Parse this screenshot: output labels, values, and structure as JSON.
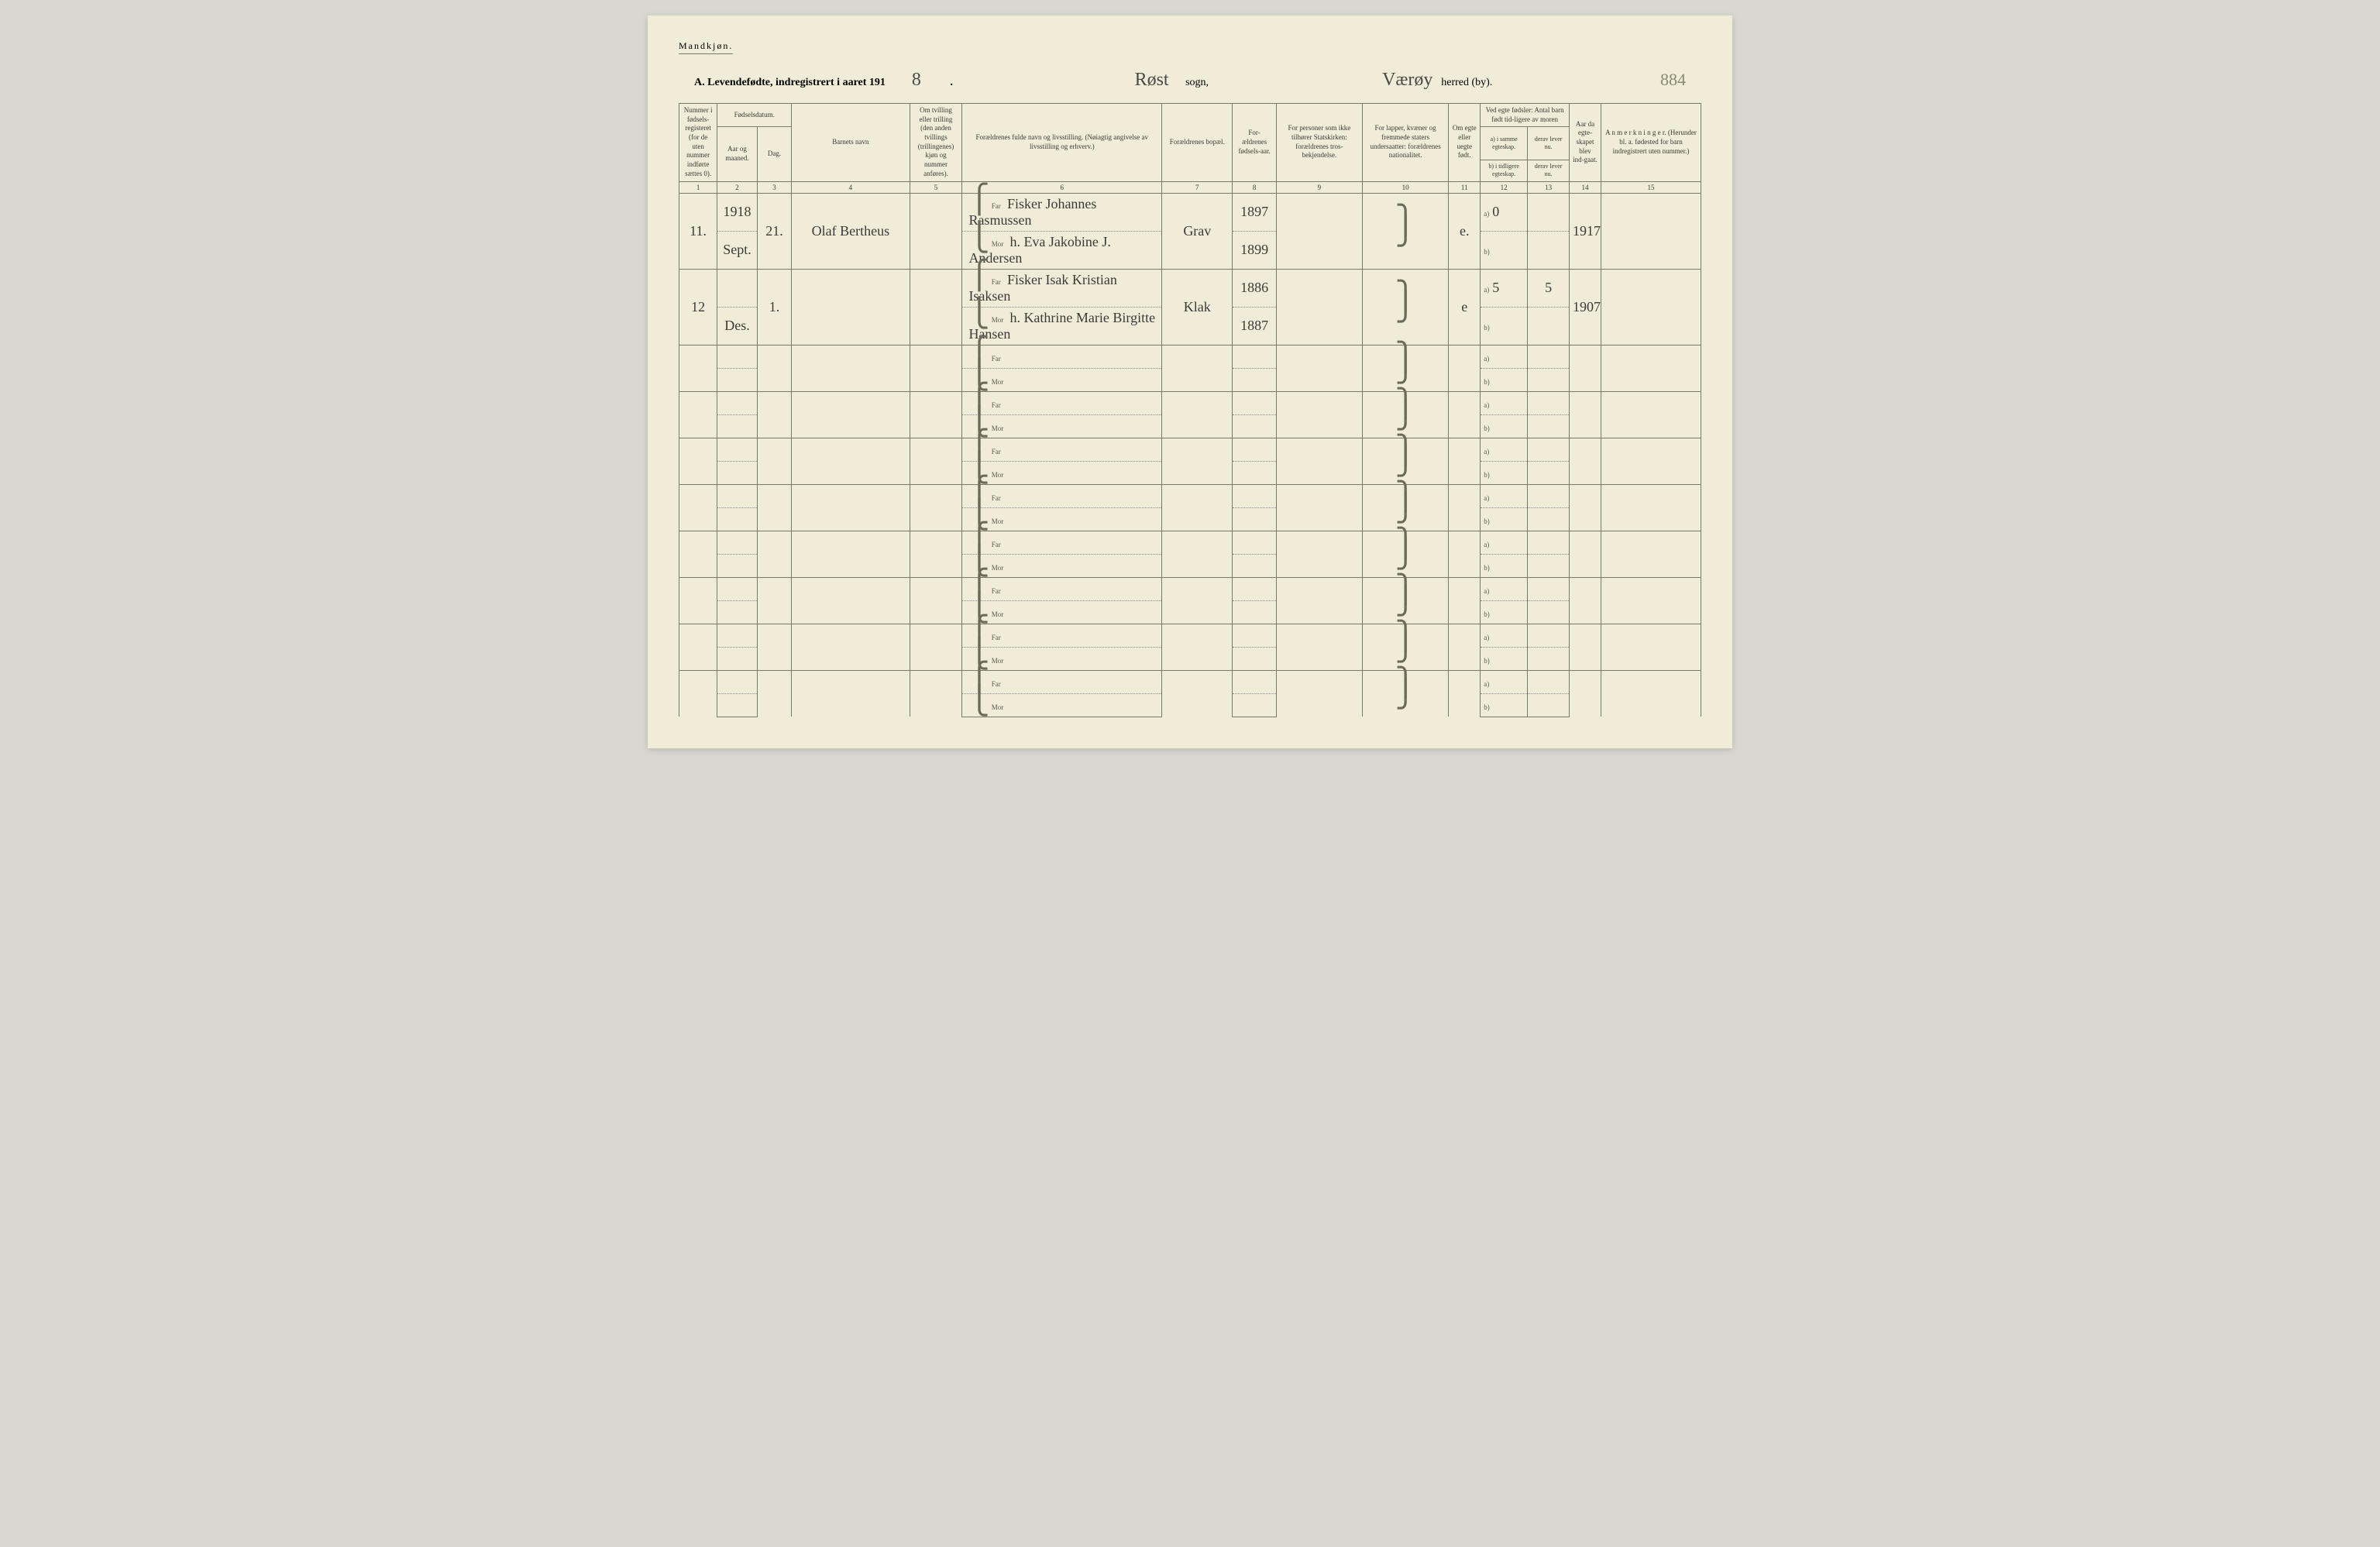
{
  "page": {
    "gender_label": "Mandkjøn.",
    "title_prefix": "A. Levendefødte, indregistrert i aaret 191",
    "year_suffix": "8",
    "sogn_value": "Røst",
    "sogn_label": "sogn,",
    "herred_value": "Værøy",
    "herred_label": "herred (by).",
    "page_number": "884"
  },
  "headers": {
    "col1": "Nummer i fødsels-registeret (for de uten nummer indførte sættes 0).",
    "col2_top": "Fødselsdatum.",
    "col2a": "Aar og maaned.",
    "col2b": "Dag.",
    "col4": "Barnets navn",
    "col5": "Om tvilling eller trilling (den anden tvillings (trillingenes) kjøn og nummer anføres).",
    "col6": "Forældrenes fulde navn og livsstilling. (Nøiagtig angivelse av livsstilling og erhverv.)",
    "col7": "Forældrenes bopæl.",
    "col8": "For-ældrenes fødsels-aar.",
    "col9": "For personer som ikke tilhører Statskirken: forældrenes tros-bekjendelse.",
    "col10": "For lapper, kvæner og fremmede staters undersaatter: forældrenes nationalitet.",
    "col11": "Om egte eller uegte født.",
    "col12_top": "Ved egte fødsler: Antal barn født tid-ligere av moren",
    "col12a": "a) i samme egteskap.",
    "col12b": "b) i tidligere egteskap.",
    "col13a": "derav lever nu.",
    "col13b": "derav lever nu.",
    "col14": "Aar da egte-skapet blev ind-gaat.",
    "col15": "A n m e r k n i n g e r. (Herunder bl. a. fødested for barn indregistrert uten nummer.)",
    "far": "Far",
    "mor": "Mor",
    "a": "a)",
    "b": "b)"
  },
  "colnums": [
    "1",
    "2",
    "3",
    "4",
    "5",
    "6",
    "7",
    "8",
    "9",
    "10",
    "11",
    "12",
    "13",
    "14",
    "15"
  ],
  "rows": [
    {
      "num": "11.",
      "year": "1918",
      "month": "Sept.",
      "day": "21.",
      "name": "Olaf Bertheus",
      "far": "Fisker Johannes Rasmussen",
      "mor": "h. Eva Jakobine J. Andersen",
      "bopael": "Grav",
      "far_year": "1897",
      "mor_year": "1899",
      "egte": "e.",
      "a_val": "0",
      "b_val": "",
      "a_lever": "",
      "year_married": "1917"
    },
    {
      "num": "12",
      "year": "",
      "month": "Des.",
      "day": "1.",
      "name": "",
      "far": "Fisker Isak Kristian Isaksen",
      "mor": "h. Kathrine Marie Birgitte Hansen",
      "bopael": "Klak",
      "far_year": "1886",
      "mor_year": "1887",
      "egte": "e",
      "a_val": "5",
      "b_val": "",
      "a_lever": "5",
      "year_married": "1907"
    },
    {
      "num": "",
      "year": "",
      "month": "",
      "day": "",
      "name": "",
      "far": "",
      "mor": "",
      "bopael": "",
      "far_year": "",
      "mor_year": "",
      "egte": "",
      "a_val": "",
      "b_val": "",
      "a_lever": "",
      "year_married": ""
    },
    {
      "num": "",
      "year": "",
      "month": "",
      "day": "",
      "name": "",
      "far": "",
      "mor": "",
      "bopael": "",
      "far_year": "",
      "mor_year": "",
      "egte": "",
      "a_val": "",
      "b_val": "",
      "a_lever": "",
      "year_married": ""
    },
    {
      "num": "",
      "year": "",
      "month": "",
      "day": "",
      "name": "",
      "far": "",
      "mor": "",
      "bopael": "",
      "far_year": "",
      "mor_year": "",
      "egte": "",
      "a_val": "",
      "b_val": "",
      "a_lever": "",
      "year_married": ""
    },
    {
      "num": "",
      "year": "",
      "month": "",
      "day": "",
      "name": "",
      "far": "",
      "mor": "",
      "bopael": "",
      "far_year": "",
      "mor_year": "",
      "egte": "",
      "a_val": "",
      "b_val": "",
      "a_lever": "",
      "year_married": ""
    },
    {
      "num": "",
      "year": "",
      "month": "",
      "day": "",
      "name": "",
      "far": "",
      "mor": "",
      "bopael": "",
      "far_year": "",
      "mor_year": "",
      "egte": "",
      "a_val": "",
      "b_val": "",
      "a_lever": "",
      "year_married": ""
    },
    {
      "num": "",
      "year": "",
      "month": "",
      "day": "",
      "name": "",
      "far": "",
      "mor": "",
      "bopael": "",
      "far_year": "",
      "mor_year": "",
      "egte": "",
      "a_val": "",
      "b_val": "",
      "a_lever": "",
      "year_married": ""
    },
    {
      "num": "",
      "year": "",
      "month": "",
      "day": "",
      "name": "",
      "far": "",
      "mor": "",
      "bopael": "",
      "far_year": "",
      "mor_year": "",
      "egte": "",
      "a_val": "",
      "b_val": "",
      "a_lever": "",
      "year_married": ""
    },
    {
      "num": "",
      "year": "",
      "month": "",
      "day": "",
      "name": "",
      "far": "",
      "mor": "",
      "bopael": "",
      "far_year": "",
      "mor_year": "",
      "egte": "",
      "a_val": "",
      "b_val": "",
      "a_lever": "",
      "year_married": ""
    }
  ],
  "colors": {
    "paper": "#f0ecd8",
    "ink": "#3a3a35",
    "rule": "#7a7a6a",
    "hand": "#3a3a38",
    "background": "#d8d8d0"
  }
}
